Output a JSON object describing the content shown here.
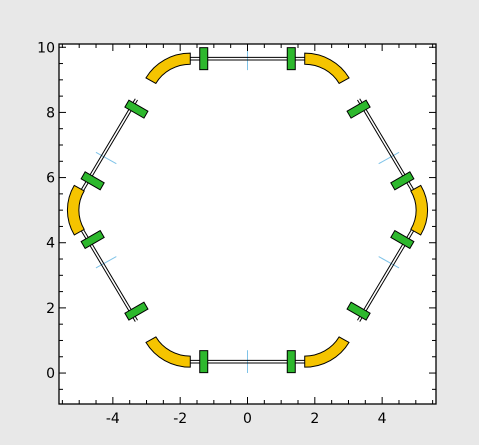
{
  "chart_data": {
    "type": "diagram",
    "title": "",
    "xlabel": "",
    "ylabel": "",
    "xlim": [
      -5.6,
      5.6
    ],
    "ylim": [
      -0.95,
      10.1
    ],
    "x_ticks": [
      -4,
      -2,
      0,
      2,
      4
    ],
    "y_ticks": [
      0,
      2,
      4,
      6,
      8,
      10
    ],
    "x_tick_labels": [
      "-4",
      "-2",
      "0",
      "2",
      "4"
    ],
    "y_tick_labels": [
      "0",
      "2",
      "4",
      "6",
      "8",
      "10"
    ],
    "ring": {
      "shape": "hexagon",
      "center": [
        0,
        5
      ],
      "straight_sections": 6,
      "dipoles": 6,
      "quadrupoles": 12
    },
    "straight_sections": [
      {
        "from": [
          -1.7,
          9.65
        ],
        "to": [
          1.7,
          9.65
        ]
      },
      {
        "from": [
          3.3,
          8.4
        ],
        "to": [
          5.0,
          5.45
        ]
      },
      {
        "from": [
          5.0,
          4.55
        ],
        "to": [
          3.3,
          1.6
        ]
      },
      {
        "from": [
          1.7,
          0.35
        ],
        "to": [
          -1.7,
          0.35
        ]
      },
      {
        "from": [
          -3.3,
          1.6
        ],
        "to": [
          -5.0,
          4.55
        ]
      },
      {
        "from": [
          -5.0,
          5.45
        ],
        "to": [
          -3.3,
          8.4
        ]
      }
    ],
    "dipole_magnets": [
      {
        "name": "dipole-top-left",
        "arc_center": [
          -1.7,
          8.3
        ],
        "radius": 1.35,
        "arc_from_deg": 150,
        "arc_to_deg": 90
      },
      {
        "name": "dipole-top-right",
        "arc_center": [
          1.7,
          8.3
        ],
        "radius": 1.35,
        "arc_from_deg": 90,
        "arc_to_deg": 30
      },
      {
        "name": "dipole-right",
        "arc_center": [
          3.83,
          5.0
        ],
        "radius": 1.35,
        "arc_from_deg": 30,
        "arc_to_deg": -30
      },
      {
        "name": "dipole-bottom-right",
        "arc_center": [
          1.7,
          1.7
        ],
        "radius": 1.35,
        "arc_from_deg": -30,
        "arc_to_deg": -90
      },
      {
        "name": "dipole-bottom-left",
        "arc_center": [
          -1.7,
          1.7
        ],
        "radius": 1.35,
        "arc_from_deg": -90,
        "arc_to_deg": -150
      },
      {
        "name": "dipole-left",
        "arc_center": [
          -3.83,
          5.0
        ],
        "radius": 1.35,
        "arc_from_deg": 150,
        "arc_to_deg": 210
      }
    ],
    "quadrupoles": [
      {
        "center": [
          -1.3,
          9.65
        ],
        "angle_deg": 0
      },
      {
        "center": [
          1.3,
          9.65
        ],
        "angle_deg": 0
      },
      {
        "center": [
          3.3,
          8.1
        ],
        "angle_deg": -60
      },
      {
        "center": [
          4.6,
          5.9
        ],
        "angle_deg": -60
      },
      {
        "center": [
          4.6,
          4.1
        ],
        "angle_deg": 60
      },
      {
        "center": [
          3.3,
          1.9
        ],
        "angle_deg": 60
      },
      {
        "center": [
          1.3,
          0.35
        ],
        "angle_deg": 0
      },
      {
        "center": [
          -1.3,
          0.35
        ],
        "angle_deg": 0
      },
      {
        "center": [
          -3.3,
          1.9
        ],
        "angle_deg": -60
      },
      {
        "center": [
          -4.6,
          4.1
        ],
        "angle_deg": -60
      },
      {
        "center": [
          -4.6,
          5.9
        ],
        "angle_deg": 60
      },
      {
        "center": [
          -3.3,
          8.1
        ],
        "angle_deg": 60
      }
    ],
    "section_markers": [
      {
        "center": [
          0,
          9.65
        ],
        "angle_deg": 90
      },
      {
        "center": [
          0,
          0.35
        ],
        "angle_deg": 90
      },
      {
        "center": [
          4.2,
          6.6
        ],
        "angle_deg": 30
      },
      {
        "center": [
          4.2,
          3.4
        ],
        "angle_deg": -30
      },
      {
        "center": [
          -4.2,
          3.4
        ],
        "angle_deg": 30
      },
      {
        "center": [
          -4.2,
          6.6
        ],
        "angle_deg": -30
      }
    ],
    "colors": {
      "background": "#e8e8e8",
      "plot_background": "#ffffff",
      "dipole_fill": "#f5c400",
      "dipole_stroke": "#000000",
      "quadrupole_fill": "#2db82d",
      "quadrupole_stroke": "#000000",
      "beam_line": "#000000",
      "section_marker": "#7fc3e8"
    }
  }
}
